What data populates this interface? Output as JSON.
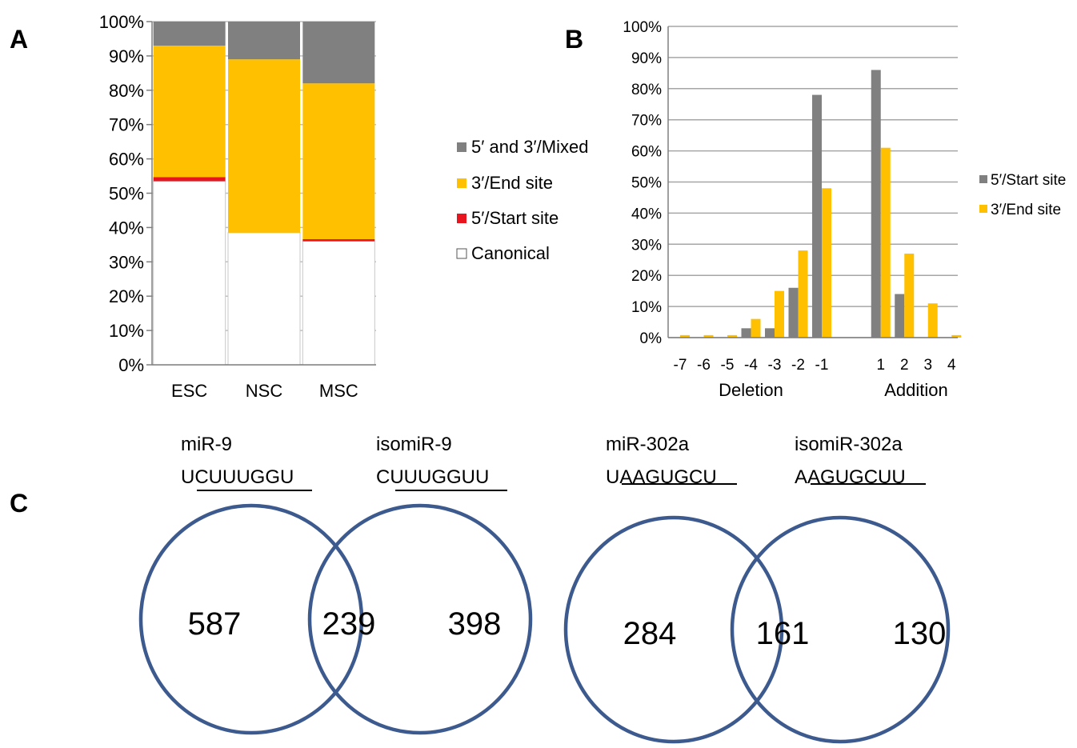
{
  "panels": {
    "a": "A",
    "b": "B",
    "c": "C"
  },
  "chart_data": [
    {
      "type": "bar",
      "stacked": true,
      "panel": "A",
      "categories": [
        "ESC",
        "NSC",
        "MSC"
      ],
      "y_ticks": [
        "0%",
        "10%",
        "20%",
        "30%",
        "40%",
        "50%",
        "60%",
        "70%",
        "80%",
        "90%",
        "100%"
      ],
      "ylim": [
        0,
        100
      ],
      "series": [
        {
          "name": "Canonical",
          "color": "#ffffff",
          "values": [
            53.5,
            38.5,
            36
          ]
        },
        {
          "name": "5′/Start site",
          "color": "#e8141e",
          "values": [
            1.2,
            0,
            0.6
          ]
        },
        {
          "name": "3′/End site",
          "color": "#ffc000",
          "values": [
            38.3,
            50.5,
            45.4
          ]
        },
        {
          "name": "5′ and 3′/Mixed",
          "color": "#808080",
          "values": [
            7,
            11,
            18
          ]
        }
      ],
      "legend_order": [
        "5′ and 3′/Mixed",
        "3′/End site",
        "5′/Start site",
        "Canonical"
      ],
      "legend_position": "right",
      "grid": true
    },
    {
      "type": "bar",
      "panel": "B",
      "categories": [
        "-7",
        "-6",
        "-5",
        "-4",
        "-3",
        "-2",
        "-1",
        "1",
        "2",
        "3",
        "4"
      ],
      "group_labels": [
        "Deletion",
        "Addition"
      ],
      "y_ticks": [
        "0%",
        "10%",
        "20%",
        "30%",
        "40%",
        "50%",
        "60%",
        "70%",
        "80%",
        "90%",
        "100%"
      ],
      "ylim": [
        0,
        100
      ],
      "series": [
        {
          "name": "5′/Start site",
          "color": "#808080",
          "values": [
            0,
            0,
            0,
            3,
            3,
            16,
            78,
            86,
            14,
            0,
            0
          ]
        },
        {
          "name": "3′/End site",
          "color": "#ffc000",
          "values": [
            0.8,
            0.8,
            0.8,
            6,
            15,
            28,
            48,
            61,
            27,
            11,
            0.8
          ]
        }
      ],
      "legend_position": "right",
      "grid": true
    }
  ],
  "venn": [
    {
      "left_name": "miR-9",
      "left_seq_first": "U",
      "left_seq_rest": "CUUUGGU",
      "right_name": "isomiR-9",
      "right_seq_first": "C",
      "right_seq_rest": "UUUGGUU",
      "left_only": "587",
      "overlap": "239",
      "right_only": "398",
      "color": "#3d5a8f"
    },
    {
      "left_name": "miR-302a",
      "left_seq_first": "U",
      "left_seq_rest": "AAGUGCU",
      "right_name": "isomiR-302a",
      "right_seq_first": "A",
      "right_seq_rest": "AGUGCUU",
      "left_only": "284",
      "overlap": "161",
      "right_only": "130",
      "color": "#3d5a8f"
    }
  ]
}
